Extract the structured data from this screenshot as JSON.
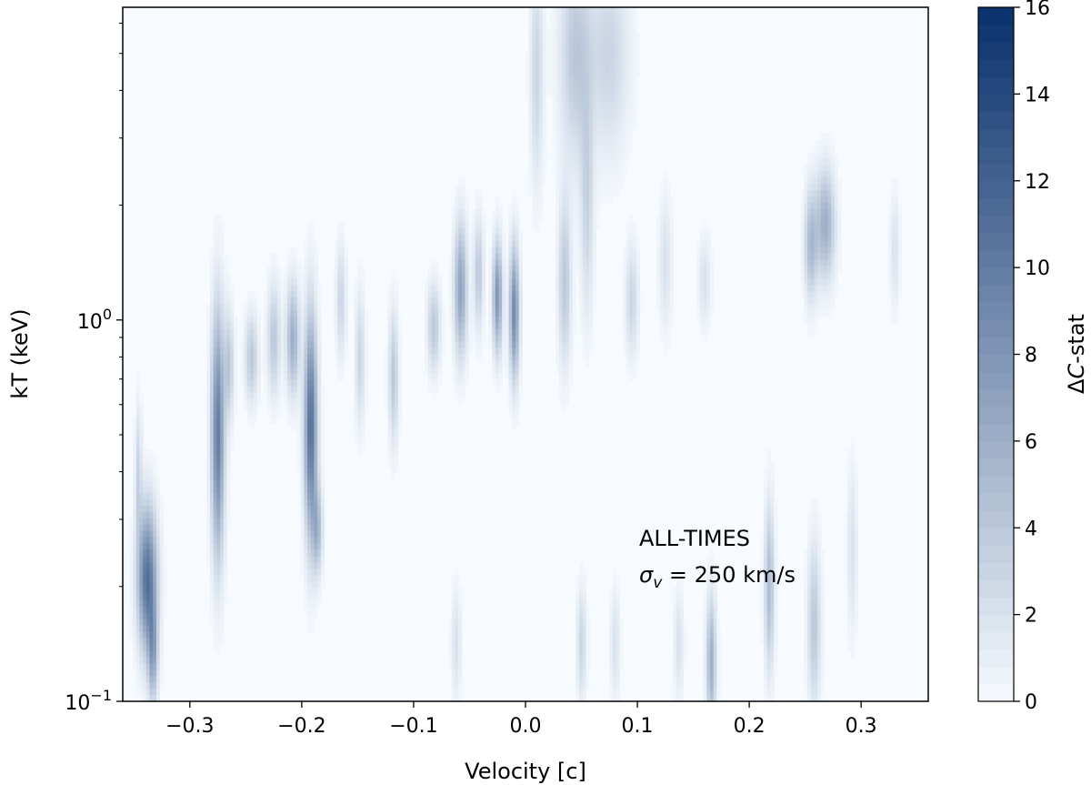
{
  "chart_data": {
    "type": "heatmap",
    "title": "",
    "xlabel": "Velocity [c]",
    "ylabel": "kT (keV)",
    "colorbar_label": "ΔC-stat",
    "colorbar_label_base": "Δ",
    "colorbar_label_italic": "C",
    "colorbar_label_rest": "-stat",
    "colormap": "Blues",
    "x_range": [
      -0.36,
      0.36
    ],
    "y_range_log10": [
      -1,
      0.82
    ],
    "y_scale": "log",
    "x_ticks": [
      "−0.3",
      "−0.2",
      "−0.1",
      "0.0",
      "0.1",
      "0.2",
      "0.3"
    ],
    "x_tick_values": [
      -0.3,
      -0.2,
      -0.1,
      0.0,
      0.1,
      0.2,
      0.3
    ],
    "y_ticks": [
      {
        "base": "10",
        "exp": "0",
        "value": 1.0
      },
      {
        "base": "10",
        "exp": "−1",
        "value": 0.1
      }
    ],
    "colorbar_range": [
      0,
      16
    ],
    "colorbar_ticks": [
      "0",
      "2",
      "4",
      "6",
      "8",
      "10",
      "12",
      "14",
      "16"
    ],
    "colorbar_tick_values": [
      0,
      2,
      4,
      6,
      8,
      10,
      12,
      14,
      16
    ],
    "annotation_line1": "ALL-TIMES",
    "annotation_line2_symbol": "σ",
    "annotation_line2_sub": "v",
    "annotation_line2_rest": " = 250 km/s",
    "colors": {
      "low": "#f7fbff",
      "high": "#08306b"
    },
    "features": [
      {
        "v": -0.338,
        "logkt": -0.68,
        "sv": 0.006,
        "sk": 0.13,
        "amp": 11
      },
      {
        "v": -0.333,
        "logkt": -0.88,
        "sv": 0.003,
        "sk": 0.09,
        "amp": 6
      },
      {
        "v": -0.346,
        "logkt": -0.4,
        "sv": 0.002,
        "sk": 0.12,
        "amp": 3
      },
      {
        "v": -0.275,
        "logkt": -0.3,
        "sv": 0.004,
        "sk": 0.22,
        "amp": 10
      },
      {
        "v": -0.265,
        "logkt": -0.12,
        "sv": 0.003,
        "sk": 0.1,
        "amp": 4
      },
      {
        "v": -0.245,
        "logkt": -0.1,
        "sv": 0.004,
        "sk": 0.08,
        "amp": 4
      },
      {
        "v": -0.225,
        "logkt": -0.05,
        "sv": 0.004,
        "sk": 0.1,
        "amp": 4
      },
      {
        "v": -0.208,
        "logkt": -0.05,
        "sv": 0.004,
        "sk": 0.1,
        "amp": 6
      },
      {
        "v": -0.192,
        "logkt": -0.28,
        "sv": 0.004,
        "sk": 0.2,
        "amp": 11
      },
      {
        "v": -0.186,
        "logkt": -0.55,
        "sv": 0.003,
        "sk": 0.08,
        "amp": 5
      },
      {
        "v": -0.165,
        "logkt": 0.05,
        "sv": 0.003,
        "sk": 0.1,
        "amp": 3
      },
      {
        "v": -0.148,
        "logkt": -0.1,
        "sv": 0.003,
        "sk": 0.12,
        "amp": 3
      },
      {
        "v": -0.118,
        "logkt": -0.15,
        "sv": 0.003,
        "sk": 0.12,
        "amp": 4
      },
      {
        "v": -0.082,
        "logkt": -0.02,
        "sv": 0.004,
        "sk": 0.08,
        "amp": 4
      },
      {
        "v": -0.058,
        "logkt": 0.08,
        "sv": 0.004,
        "sk": 0.12,
        "amp": 7
      },
      {
        "v": -0.042,
        "logkt": 0.12,
        "sv": 0.003,
        "sk": 0.1,
        "amp": 4
      },
      {
        "v": -0.025,
        "logkt": 0.06,
        "sv": 0.003,
        "sk": 0.1,
        "amp": 8
      },
      {
        "v": -0.01,
        "logkt": 0.02,
        "sv": 0.003,
        "sk": 0.12,
        "amp": 9
      },
      {
        "v": 0.01,
        "logkt": 0.65,
        "sv": 0.004,
        "sk": 0.2,
        "amp": 3
      },
      {
        "v": 0.045,
        "logkt": 0.7,
        "sv": 0.01,
        "sk": 0.2,
        "amp": 4
      },
      {
        "v": 0.075,
        "logkt": 0.7,
        "sv": 0.012,
        "sk": 0.18,
        "amp": 3
      },
      {
        "v": 0.035,
        "logkt": 0.1,
        "sv": 0.004,
        "sk": 0.15,
        "amp": 4
      },
      {
        "v": 0.055,
        "logkt": 0.3,
        "sv": 0.004,
        "sk": 0.2,
        "amp": 3
      },
      {
        "v": 0.095,
        "logkt": 0.05,
        "sv": 0.004,
        "sk": 0.1,
        "amp": 3
      },
      {
        "v": 0.125,
        "logkt": 0.15,
        "sv": 0.004,
        "sk": 0.12,
        "amp": 2
      },
      {
        "v": 0.16,
        "logkt": 0.1,
        "sv": 0.004,
        "sk": 0.08,
        "amp": 2
      },
      {
        "v": 0.255,
        "logkt": 0.2,
        "sv": 0.004,
        "sk": 0.1,
        "amp": 5
      },
      {
        "v": 0.268,
        "logkt": 0.25,
        "sv": 0.006,
        "sk": 0.1,
        "amp": 6
      },
      {
        "v": 0.33,
        "logkt": 0.18,
        "sv": 0.003,
        "sk": 0.1,
        "amp": 2
      },
      {
        "v": 0.166,
        "logkt": -0.9,
        "sv": 0.003,
        "sk": 0.12,
        "amp": 6
      },
      {
        "v": 0.218,
        "logkt": -0.7,
        "sv": 0.003,
        "sk": 0.15,
        "amp": 5
      },
      {
        "v": 0.258,
        "logkt": -0.8,
        "sv": 0.004,
        "sk": 0.15,
        "amp": 4
      },
      {
        "v": 0.137,
        "logkt": -0.85,
        "sv": 0.003,
        "sk": 0.1,
        "amp": 2
      },
      {
        "v": 0.08,
        "logkt": -0.85,
        "sv": 0.003,
        "sk": 0.1,
        "amp": 2
      },
      {
        "v": -0.062,
        "logkt": -0.85,
        "sv": 0.003,
        "sk": 0.1,
        "amp": 2
      },
      {
        "v": 0.292,
        "logkt": -0.6,
        "sv": 0.003,
        "sk": 0.15,
        "amp": 2
      },
      {
        "v": 0.05,
        "logkt": -0.85,
        "sv": 0.003,
        "sk": 0.1,
        "amp": 3
      }
    ]
  }
}
